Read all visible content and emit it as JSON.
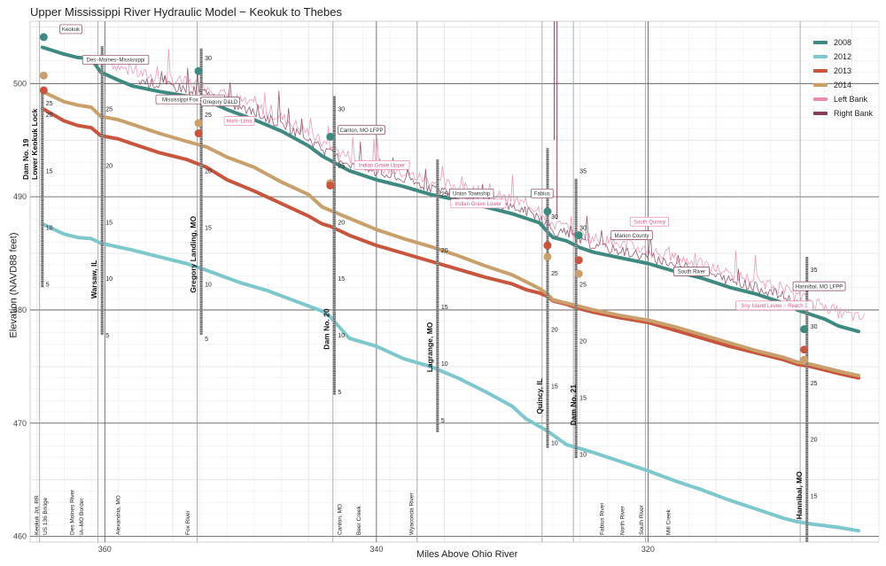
{
  "chart_data": {
    "type": "line",
    "title": "Upper Mississippi River Hydraulic Model − Keokuk to Thebes",
    "xlabel": "Miles Above Ohio River",
    "ylabel": "Elevation (NAVD88 feet)",
    "xlim": [
      365.5,
      303
    ],
    "ylim": [
      459.5,
      505.5
    ],
    "x_ticks": [
      360,
      340,
      320
    ],
    "y_ticks": [
      460,
      470,
      480,
      490,
      500
    ],
    "grid": true,
    "legend_position": "top-right",
    "series": [
      {
        "name": "2008",
        "color": "#3f8a80",
        "x": [
          364.6,
          363,
          362,
          361,
          360.3,
          359,
          358,
          356,
          354,
          352.5,
          351,
          349,
          347,
          345,
          344,
          342,
          340,
          338,
          336,
          334,
          332,
          330,
          329,
          328,
          327.4,
          327,
          326,
          325,
          324,
          322,
          320,
          318,
          316,
          314,
          312,
          310,
          309,
          308,
          307,
          306,
          304.5
        ],
        "y": [
          503.2,
          502.6,
          502.3,
          502.2,
          501,
          500.3,
          499.8,
          499.3,
          498.9,
          498.5,
          497.7,
          496.8,
          495.8,
          494.5,
          493.6,
          492.3,
          491.5,
          490.9,
          490.2,
          489.7,
          489.1,
          488.5,
          488.1,
          487.7,
          486.9,
          486.4,
          486.1,
          485.5,
          485.1,
          484.6,
          484.1,
          483.4,
          482.8,
          482,
          481.4,
          480.6,
          480,
          479.6,
          479.2,
          478.6,
          478.1
        ]
      },
      {
        "name": "2012",
        "color": "#7ec7cc",
        "x": [
          364.6,
          363,
          362,
          361,
          360.3,
          358,
          356,
          354,
          352.5,
          350,
          348,
          346,
          344,
          343.4,
          342,
          340,
          338,
          336,
          334,
          332,
          330,
          329,
          327.4,
          326,
          324,
          322,
          320,
          318,
          316,
          314,
          312,
          310,
          309,
          308,
          306,
          304.5
        ],
        "y": [
          487.6,
          486.7,
          486.4,
          486.3,
          485.9,
          485.3,
          484.7,
          484.1,
          483.5,
          482.4,
          481.7,
          480.8,
          479.9,
          479.4,
          477.5,
          476.8,
          475.7,
          475,
          474,
          472.8,
          471.5,
          470.4,
          469.3,
          468.1,
          467.4,
          466.6,
          465.8,
          464.9,
          464.1,
          463.2,
          462.4,
          461.6,
          461.3,
          461.1,
          460.8,
          460.5
        ]
      },
      {
        "name": "2013",
        "color": "#c8553d",
        "x": [
          364.6,
          363,
          362,
          361,
          360.3,
          359,
          358,
          356,
          354,
          352.5,
          351,
          349,
          347,
          345,
          344,
          343.4,
          342,
          340,
          338,
          336,
          334,
          332,
          330,
          329,
          328,
          327.4,
          327,
          326,
          325,
          324,
          322,
          320,
          318,
          316,
          314,
          312,
          310,
          309,
          308,
          307,
          306,
          304.5
        ],
        "y": [
          497.8,
          496.7,
          496.3,
          496.1,
          495.4,
          495.1,
          494.7,
          493.9,
          493.3,
          492.6,
          491.5,
          490.5,
          489.4,
          488.3,
          487.6,
          487.4,
          486.6,
          485.7,
          485,
          484.3,
          483.6,
          482.9,
          482.3,
          481.8,
          481.5,
          481.2,
          480.8,
          480.5,
          480.1,
          479.8,
          479.3,
          478.9,
          478.2,
          477.5,
          476.8,
          476.2,
          475.6,
          475.2,
          475,
          474.7,
          474.4,
          474
        ]
      },
      {
        "name": "2014",
        "color": "#c9a06b",
        "x": [
          364.6,
          363,
          362,
          361,
          360.3,
          359,
          358,
          356,
          354,
          352.5,
          351,
          349,
          347,
          345,
          344,
          343.4,
          342,
          340,
          338,
          336,
          334,
          332,
          330,
          329,
          328,
          327.4,
          327,
          326,
          325,
          324,
          322,
          320,
          318,
          316,
          314,
          312,
          310,
          309,
          308,
          307,
          306,
          304.5
        ],
        "y": [
          499.3,
          498.4,
          498.1,
          497.9,
          497.1,
          496.8,
          496.4,
          495.6,
          494.9,
          494.4,
          493.5,
          492.6,
          491.3,
          490.2,
          489.1,
          488.8,
          488.1,
          487.1,
          486.3,
          485.6,
          484.8,
          483.9,
          483.1,
          482.5,
          481.9,
          481.4,
          480.9,
          480.6,
          480.3,
          480,
          479.5,
          479.1,
          478.5,
          477.8,
          477.1,
          476.4,
          475.8,
          475.4,
          475.2,
          474.9,
          474.6,
          474.2
        ]
      }
    ],
    "bank_series": [
      {
        "name": "Left Bank",
        "color": "#e98bb0"
      },
      {
        "name": "Right Bank",
        "color": "#8a3d5b"
      }
    ],
    "station_markers": [
      {
        "x": 364.5,
        "values": {
          "2008": 504.1,
          "2013": 499.4,
          "2014": 500.7
        }
      },
      {
        "x": 353.1,
        "values": {
          "2008": 501.1,
          "2013": 495.6,
          "2014": 496.5
        }
      },
      {
        "x": 343.4,
        "values": {
          "2008": 495.3,
          "2013": 491,
          "2014": 491.2
        }
      },
      {
        "x": 327.4,
        "values": {
          "2008": 488.7,
          "2013": 485.7,
          "2014": 484.7
        }
      },
      {
        "x": 325.1,
        "values": {
          "2008": 486.6,
          "2013": 484.4,
          "2014": 483.2
        }
      },
      {
        "x": 308.5,
        "values": {
          "2008": 478.3,
          "2013": 476.5,
          "2014": 475.6
        }
      }
    ],
    "gauges": [
      {
        "name": "Dam No. 19\nLower Keokuk Lock",
        "x": 364.6,
        "ytop": 499.6,
        "ybot": 482.0,
        "ticks": [
          {
            "y": 498.3,
            "label": "25"
          },
          {
            "y": 497.3,
            "label": "20"
          },
          {
            "y": 492.3,
            "label": "15"
          },
          {
            "y": 487.3,
            "label": "10"
          },
          {
            "y": 482.3,
            "label": "5"
          }
        ],
        "label_top": 491.5,
        "bar_side": "left"
      },
      {
        "name": "Warsaw, IL",
        "x": 360.2,
        "ytop": 503.3,
        "ybot": 477.8,
        "ticks": [
          {
            "y": 497.8,
            "label": "25"
          },
          {
            "y": 492.8,
            "label": "20"
          },
          {
            "y": 487.8,
            "label": "15"
          },
          {
            "y": 482.8,
            "label": "10"
          },
          {
            "y": 477.8,
            "label": "5"
          }
        ],
        "label_top": 481.0,
        "bar_side": "left"
      },
      {
        "name": "Gregory Landing, MO",
        "x": 352.9,
        "ytop": 503.1,
        "ybot": 477.8,
        "ticks": [
          {
            "y": 502.3,
            "label": "30"
          },
          {
            "y": 497.3,
            "label": "25"
          },
          {
            "y": 492.3,
            "label": "20"
          },
          {
            "y": 487.3,
            "label": "15"
          },
          {
            "y": 482.3,
            "label": "10"
          },
          {
            "y": 477.5,
            "label": "5"
          }
        ],
        "label_top": 481.5,
        "bar_side": "left"
      },
      {
        "name": "Dam No. 20",
        "x": 343.1,
        "ytop": 498.9,
        "ybot": 472.5,
        "ticks": [
          {
            "y": 497.8,
            "label": "30"
          },
          {
            "y": 492.8,
            "label": "25"
          },
          {
            "y": 487.8,
            "label": "20"
          },
          {
            "y": 482.8,
            "label": "15"
          },
          {
            "y": 477.8,
            "label": "10"
          },
          {
            "y": 472.8,
            "label": "5"
          }
        ],
        "label_top": 476.5,
        "bar_side": "left"
      },
      {
        "name": "Lagrange, MO",
        "x": 335.5,
        "ytop": 493.3,
        "ybot": 469.2,
        "ticks": [
          {
            "y": 490.3,
            "label": "25"
          },
          {
            "y": 485.3,
            "label": "20"
          },
          {
            "y": 480.3,
            "label": "15"
          },
          {
            "y": 475.3,
            "label": "10"
          },
          {
            "y": 470.3,
            "label": "5"
          }
        ],
        "label_top": 474.5,
        "bar_side": "left"
      },
      {
        "name": "Quincy, IL",
        "x": 327.4,
        "ytop": 494.3,
        "ybot": 467.8,
        "ticks": [
          {
            "y": 488.3,
            "label": "30"
          },
          {
            "y": 483.3,
            "label": "25"
          },
          {
            "y": 478.3,
            "label": "20"
          },
          {
            "y": 473.3,
            "label": "15"
          },
          {
            "y": 468.3,
            "label": "10"
          }
        ],
        "label_top": 470.8,
        "bar_side": "left"
      },
      {
        "name": "Dam No. 21",
        "x": 325.3,
        "ytop": 491.6,
        "ybot": 466.9,
        "ticks": [
          {
            "y": 492.3,
            "label": "35"
          },
          {
            "y": 487.3,
            "label": "30"
          },
          {
            "y": 482.3,
            "label": "25"
          },
          {
            "y": 477.3,
            "label": "20"
          },
          {
            "y": 472.3,
            "label": "15"
          },
          {
            "y": 467.3,
            "label": "10"
          }
        ],
        "label_top": 469.8,
        "bar_side": "right"
      },
      {
        "name": "Hannibal, MO",
        "x": 308.3,
        "ytop": 484.7,
        "ybot": 459.5,
        "ticks": [
          {
            "y": 483.6,
            "label": "35"
          },
          {
            "y": 478.6,
            "label": "30"
          },
          {
            "y": 473.6,
            "label": "25"
          },
          {
            "y": 468.6,
            "label": "20"
          },
          {
            "y": 463.6,
            "label": "15"
          }
        ],
        "label_top": 461.5,
        "bar_side": "left"
      }
    ],
    "vertical_refs": [
      364.8,
      360.5,
      353.2,
      343.2,
      337.0,
      327.8,
      325.5,
      320.2,
      308.8
    ],
    "bank_labels": [
      {
        "text": "Keokuk",
        "x": 362.5,
        "y": 504.8,
        "bank": "right"
      },
      {
        "text": "Des−Moines–Mississippi",
        "x": 359.2,
        "y": 502.1,
        "bank": "right"
      },
      {
        "text": "Mississippi Fox 2 Lower",
        "x": 353.7,
        "y": 498.6,
        "bank": "right"
      },
      {
        "text": "Gregory D&LD",
        "x": 351.5,
        "y": 498.4,
        "bank": "right"
      },
      {
        "text": "Hunt–Lima",
        "x": 350.1,
        "y": 496.7,
        "bank": "left"
      },
      {
        "text": "Canton, MO LFPP",
        "x": 341.1,
        "y": 495.9,
        "bank": "right"
      },
      {
        "text": "Indian Grave Upper",
        "x": 339.6,
        "y": 492.8,
        "bank": "left"
      },
      {
        "text": "Union Township",
        "x": 333.0,
        "y": 490.3,
        "bank": "right"
      },
      {
        "text": "Indian Grave Lower",
        "x": 332.5,
        "y": 489.4,
        "bank": "left"
      },
      {
        "text": "Fabius",
        "x": 327.8,
        "y": 490.3,
        "bank": "right"
      },
      {
        "text": "South Quincy",
        "x": 319.9,
        "y": 487.8,
        "bank": "left"
      },
      {
        "text": "Marion County",
        "x": 321.2,
        "y": 486.6,
        "bank": "right"
      },
      {
        "text": "South River",
        "x": 316.8,
        "y": 483.4,
        "bank": "right"
      },
      {
        "text": "Hannibal, MO LFPP",
        "x": 307.4,
        "y": 482.1,
        "bank": "right"
      },
      {
        "text": "Sny Island Levee − Reach 1",
        "x": 310.7,
        "y": 480.4,
        "bank": "left"
      }
    ],
    "bottom_labels": [
      {
        "text": "Keokuk Jct. RR",
        "x": 365.0
      },
      {
        "text": "US 136 Bridge",
        "x": 364.4
      },
      {
        "text": "Des Moines River",
        "x": 362.4
      },
      {
        "text": "IA–MO Border",
        "x": 361.7
      },
      {
        "text": "Alexandria, MO",
        "x": 359.0
      },
      {
        "text": "Fox River",
        "x": 353.9
      },
      {
        "text": "Canton, MO",
        "x": 342.7
      },
      {
        "text": "Beer Creek",
        "x": 341.3
      },
      {
        "text": "Wyaconda River",
        "x": 337.4
      },
      {
        "text": "Fabius River",
        "x": 323.4
      },
      {
        "text": "North River",
        "x": 321.9
      },
      {
        "text": "South River",
        "x": 320.5
      },
      {
        "text": "Mill Creek",
        "x": 318.5
      }
    ]
  },
  "legend": [
    {
      "label": "2008",
      "color": "#3f8a80"
    },
    {
      "label": "2012",
      "color": "#7ec7cc"
    },
    {
      "label": "2013",
      "color": "#c8553d"
    },
    {
      "label": "2014",
      "color": "#c9a06b"
    },
    {
      "label": "Left Bank",
      "color": "#e98bb0"
    },
    {
      "label": "Right Bank",
      "color": "#8a3d5b"
    }
  ]
}
